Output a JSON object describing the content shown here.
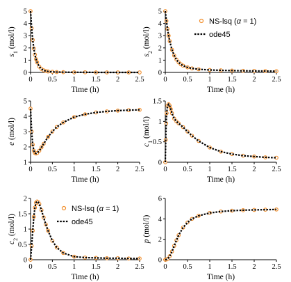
{
  "chart_data": [
    {
      "type": "line",
      "xlabel": "Time (h)",
      "ylabel_main": "s",
      "ylabel_sub": "1",
      "ylabel_unit": " (mol/l)",
      "xlim": [
        0,
        2.5
      ],
      "ylim": [
        0,
        5
      ],
      "xticks": [
        "0",
        "0.5",
        "1",
        "1.5",
        "2",
        "2.5"
      ],
      "yticks": [
        "0",
        "1",
        "2",
        "3",
        "4",
        "5"
      ],
      "x": [
        0,
        0.025,
        0.05,
        0.075,
        0.1,
        0.125,
        0.15,
        0.2,
        0.25,
        0.3,
        0.35,
        0.4,
        0.5,
        0.6,
        0.75,
        1.0,
        1.25,
        1.5,
        1.75,
        2.0,
        2.25,
        2.5
      ],
      "series": [
        {
          "name": "NS-lsq",
          "values": [
            5.0,
            3.6,
            2.65,
            1.95,
            1.45,
            1.08,
            0.82,
            0.47,
            0.28,
            0.17,
            0.11,
            0.08,
            0.05,
            0.03,
            0.02,
            0.01,
            0.01,
            0.0,
            0.0,
            0.0,
            0.0,
            0.0
          ]
        },
        {
          "name": "ode45",
          "values": [
            5.0,
            3.6,
            2.65,
            1.95,
            1.45,
            1.08,
            0.82,
            0.47,
            0.28,
            0.17,
            0.11,
            0.08,
            0.05,
            0.03,
            0.02,
            0.01,
            0.01,
            0.0,
            0.0,
            0.0,
            0.0,
            0.0
          ]
        }
      ]
    },
    {
      "type": "line",
      "xlabel": "Time (h)",
      "ylabel_main": "s",
      "ylabel_sub": "2",
      "ylabel_unit": " (mol/l)",
      "xlim": [
        0,
        2.5
      ],
      "ylim": [
        0,
        5
      ],
      "xticks": [
        "0",
        "0.5",
        "1",
        "1.5",
        "2",
        "2.5"
      ],
      "yticks": [
        "0",
        "1",
        "2",
        "3",
        "4",
        "5"
      ],
      "legend": {
        "position": "top-right",
        "items": [
          {
            "label_main": "NS-lsq (",
            "label_alpha": "α",
            "label_tail": " = 1)",
            "marker": "circle"
          },
          {
            "label_main": "ode45",
            "marker": "dash"
          }
        ]
      },
      "x": [
        0,
        0.025,
        0.05,
        0.075,
        0.1,
        0.15,
        0.2,
        0.25,
        0.3,
        0.35,
        0.4,
        0.5,
        0.6,
        0.75,
        1.0,
        1.25,
        1.5,
        1.75,
        2.0,
        2.25,
        2.5
      ],
      "series": [
        {
          "name": "NS-lsq",
          "values": [
            5.0,
            4.2,
            3.55,
            3.0,
            2.55,
            1.85,
            1.38,
            1.05,
            0.82,
            0.66,
            0.55,
            0.41,
            0.33,
            0.26,
            0.2,
            0.17,
            0.15,
            0.13,
            0.12,
            0.11,
            0.1
          ]
        },
        {
          "name": "ode45",
          "values": [
            5.0,
            4.2,
            3.55,
            3.0,
            2.55,
            1.85,
            1.38,
            1.05,
            0.82,
            0.66,
            0.55,
            0.41,
            0.33,
            0.26,
            0.2,
            0.17,
            0.15,
            0.13,
            0.12,
            0.11,
            0.1
          ]
        }
      ]
    },
    {
      "type": "line",
      "xlabel": "Time (h)",
      "ylabel_main": "e",
      "ylabel_sub": "",
      "ylabel_unit": " (mol/l)",
      "xlim": [
        0,
        2.5
      ],
      "ylim": [
        1,
        5
      ],
      "xticks": [
        "0",
        "0.5",
        "1",
        "1.5",
        "2",
        "2.5"
      ],
      "yticks": [
        "1",
        "2",
        "3",
        "4",
        "5"
      ],
      "x": [
        0,
        0.025,
        0.05,
        0.075,
        0.1,
        0.125,
        0.15,
        0.2,
        0.25,
        0.3,
        0.4,
        0.5,
        0.6,
        0.75,
        1.0,
        1.25,
        1.5,
        1.75,
        2.0,
        2.25,
        2.5
      ],
      "series": [
        {
          "name": "NS-lsq",
          "values": [
            4.5,
            3.0,
            2.15,
            1.75,
            1.6,
            1.57,
            1.6,
            1.75,
            1.97,
            2.2,
            2.65,
            3.0,
            3.3,
            3.6,
            3.95,
            4.13,
            4.25,
            4.32,
            4.37,
            4.4,
            4.42
          ]
        },
        {
          "name": "ode45",
          "values": [
            4.5,
            3.0,
            2.15,
            1.75,
            1.6,
            1.57,
            1.6,
            1.75,
            1.97,
            2.2,
            2.65,
            3.0,
            3.3,
            3.6,
            3.95,
            4.13,
            4.25,
            4.32,
            4.37,
            4.4,
            4.42
          ]
        }
      ]
    },
    {
      "type": "line",
      "xlabel": "Time (h)",
      "ylabel_main": "c",
      "ylabel_sub": "1",
      "ylabel_unit": " (mol/l)",
      "xlim": [
        0,
        2.5
      ],
      "ylim": [
        0,
        1.5
      ],
      "xticks": [
        "0",
        "0.5",
        "1",
        "1.5",
        "2",
        "2.5"
      ],
      "yticks": [
        "0",
        "0.5",
        "1",
        "1.5"
      ],
      "x": [
        0,
        0.01,
        0.02,
        0.03,
        0.05,
        0.075,
        0.1,
        0.125,
        0.15,
        0.2,
        0.25,
        0.3,
        0.4,
        0.5,
        0.6,
        0.75,
        1.0,
        1.25,
        1.5,
        1.75,
        2.0,
        2.25,
        2.5
      ],
      "series": [
        {
          "name": "NS-lsq",
          "values": [
            0,
            0.55,
            0.95,
            1.2,
            1.38,
            1.42,
            1.38,
            1.3,
            1.2,
            1.07,
            1.0,
            0.95,
            0.86,
            0.75,
            0.65,
            0.52,
            0.36,
            0.26,
            0.2,
            0.16,
            0.14,
            0.12,
            0.11
          ]
        },
        {
          "name": "ode45",
          "values": [
            0,
            0.55,
            0.95,
            1.2,
            1.38,
            1.42,
            1.38,
            1.3,
            1.2,
            1.07,
            1.0,
            0.95,
            0.86,
            0.75,
            0.65,
            0.52,
            0.36,
            0.26,
            0.2,
            0.16,
            0.14,
            0.12,
            0.11
          ]
        }
      ]
    },
    {
      "type": "line",
      "xlabel": "Time (h)",
      "ylabel_main": "c",
      "ylabel_sub": "2",
      "ylabel_unit": " (mol/l)",
      "xlim": [
        0,
        2.5
      ],
      "ylim": [
        0,
        2
      ],
      "xticks": [
        "0",
        "0.5",
        "1",
        "1.5",
        "2",
        "2.5"
      ],
      "yticks": [
        "0",
        "0.5",
        "1",
        "1.5",
        "2"
      ],
      "legend": {
        "position": "center-right",
        "items": [
          {
            "label_main": "NS-lsq (",
            "label_alpha": "α",
            "label_tail": " = 1)",
            "marker": "circle"
          },
          {
            "label_main": "ode45",
            "marker": "dash"
          }
        ]
      },
      "x": [
        0,
        0.025,
        0.05,
        0.075,
        0.1,
        0.125,
        0.15,
        0.175,
        0.2,
        0.25,
        0.3,
        0.35,
        0.4,
        0.5,
        0.6,
        0.75,
        1.0,
        1.25,
        1.5,
        1.75,
        2.0,
        2.25,
        2.5
      ],
      "series": [
        {
          "name": "NS-lsq",
          "values": [
            0,
            0.45,
            0.95,
            1.4,
            1.7,
            1.86,
            1.9,
            1.88,
            1.82,
            1.62,
            1.38,
            1.15,
            0.95,
            0.62,
            0.4,
            0.22,
            0.1,
            0.07,
            0.06,
            0.05,
            0.05,
            0.04,
            0.04
          ]
        },
        {
          "name": "ode45",
          "values": [
            0,
            0.45,
            0.95,
            1.4,
            1.7,
            1.86,
            1.9,
            1.88,
            1.82,
            1.62,
            1.38,
            1.15,
            0.95,
            0.62,
            0.4,
            0.22,
            0.1,
            0.07,
            0.06,
            0.05,
            0.05,
            0.04,
            0.04
          ]
        }
      ]
    },
    {
      "type": "line",
      "xlabel": "Time (h)",
      "ylabel_main": "p",
      "ylabel_sub": "",
      "ylabel_unit": " (mol/l)",
      "xlim": [
        0,
        2.5
      ],
      "ylim": [
        0,
        6
      ],
      "xticks": [
        "0",
        "0.5",
        "1",
        "1.5",
        "2",
        "2.5"
      ],
      "yticks": [
        "0",
        "2",
        "4",
        "6"
      ],
      "x": [
        0,
        0.025,
        0.05,
        0.1,
        0.15,
        0.2,
        0.25,
        0.3,
        0.4,
        0.5,
        0.6,
        0.75,
        1.0,
        1.25,
        1.5,
        1.75,
        2.0,
        2.25,
        2.5
      ],
      "series": [
        {
          "name": "NS-lsq",
          "values": [
            0,
            0.02,
            0.08,
            0.35,
            0.8,
            1.35,
            1.9,
            2.4,
            3.15,
            3.65,
            4.0,
            4.3,
            4.58,
            4.72,
            4.8,
            4.85,
            4.88,
            4.9,
            4.92
          ]
        },
        {
          "name": "ode45",
          "values": [
            0,
            0.02,
            0.08,
            0.35,
            0.8,
            1.35,
            1.9,
            2.4,
            3.15,
            3.65,
            4.0,
            4.3,
            4.58,
            4.72,
            4.8,
            4.85,
            4.88,
            4.9,
            4.92
          ]
        }
      ]
    }
  ],
  "colors": {
    "marker": "#F28E2B",
    "line": "#000000",
    "axis": "#000000"
  }
}
